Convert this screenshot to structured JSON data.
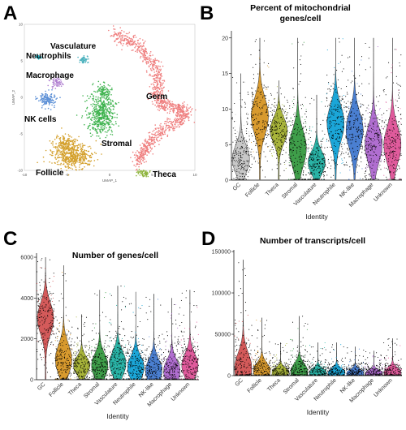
{
  "panels": [
    "A",
    "B",
    "C",
    "D"
  ],
  "chart_data": [
    {
      "type": "scatter",
      "panel": "A",
      "xlabel": "UMAP_1",
      "ylabel": "UMAP_2",
      "xlim": [
        -10,
        10
      ],
      "ylim": [
        -10,
        10
      ],
      "x_ticks": [
        -10,
        -5,
        0,
        5,
        10
      ],
      "x_tick_labels": [
        "-10",
        "-5",
        "0",
        "5",
        "10"
      ],
      "y_ticks": [
        -10,
        -5,
        0,
        5,
        10
      ],
      "y_tick_labels": [
        "-10",
        "-5",
        "0",
        "5",
        "10"
      ],
      "clusters": [
        {
          "name": "Vasculature",
          "color": "#4fb3bf"
        },
        {
          "name": "Neutrophils",
          "color": "#29b6c8"
        },
        {
          "name": "Macrophage",
          "color": "#b07fd0"
        },
        {
          "name": "NK cells",
          "color": "#5b8fd6"
        },
        {
          "name": "Germ",
          "color": "#ef7f7f"
        },
        {
          "name": "Stromal",
          "color": "#3fb34f"
        },
        {
          "name": "Follicle",
          "color": "#d4a02c"
        },
        {
          "name": "Theca",
          "color": "#8db33a"
        }
      ]
    },
    {
      "type": "violin",
      "panel": "B",
      "title": "Percent of mitochondrial genes/cell",
      "xlabel": "Identity",
      "ylabel": "",
      "ylim": [
        0,
        21
      ],
      "yticks": [
        0,
        5,
        10,
        15,
        20
      ],
      "ytick_labels": [
        "0",
        "5",
        "10",
        "15",
        "20"
      ],
      "categories": [
        "GC",
        "Follicle",
        "Theca",
        "Stromal",
        "Vasculature",
        "Neutrophile",
        "NK-like",
        "Macrophage",
        "Unknown"
      ],
      "colors": [
        "#c8c8c8",
        "#d89a2e",
        "#a8b43a",
        "#3f9e4a",
        "#2ab3a6",
        "#1ba6d8",
        "#4a7fd1",
        "#b06ed0",
        "#e05b9c"
      ],
      "medians": [
        3,
        9,
        7,
        4.5,
        2.5,
        8,
        7,
        5,
        5
      ],
      "maxima": [
        15,
        20,
        14,
        20,
        12,
        20,
        20,
        20,
        20
      ]
    },
    {
      "type": "violin",
      "panel": "C",
      "title": "Number of genes/cell",
      "xlabel": "Identity",
      "ylabel": "",
      "ylim": [
        0,
        6200
      ],
      "yticks": [
        0,
        2000,
        4000,
        6000
      ],
      "ytick_labels": [
        "0",
        "2000",
        "4000",
        "6000"
      ],
      "categories": [
        "GC",
        "Follicle",
        "Theca",
        "Stromal",
        "Vasculature",
        "Neutrophile",
        "NK-like",
        "Macrophage",
        "Unknown"
      ],
      "colors": [
        "#d45a5a",
        "#d89a2e",
        "#a8b43a",
        "#3f9e4a",
        "#2ab3a6",
        "#1ba6d8",
        "#4a7fd1",
        "#b06ed0",
        "#e05b9c"
      ],
      "medians": [
        3000,
        1000,
        700,
        700,
        800,
        600,
        450,
        450,
        700
      ],
      "maxima": [
        6000,
        5600,
        3200,
        4400,
        4600,
        4300,
        4200,
        4000,
        4400
      ]
    },
    {
      "type": "violin",
      "panel": "D",
      "title": "Number of transcripts/cell",
      "xlabel": "Identity",
      "ylabel": "",
      "ylim": [
        0,
        152000
      ],
      "yticks": [
        0,
        50000,
        100000,
        150000
      ],
      "ytick_labels": [
        "0",
        "50000",
        "100000",
        "150000"
      ],
      "categories": [
        "GC",
        "Follicle",
        "Theca",
        "Stromal",
        "Vasculature",
        "Neutrophile",
        "NK-like",
        "Macrophage",
        "Unknown"
      ],
      "colors": [
        "#d45a5a",
        "#d89a2e",
        "#a8b43a",
        "#3f9e4a",
        "#2ab3a6",
        "#1ba6d8",
        "#4a7fd1",
        "#b06ed0",
        "#e05b9c"
      ],
      "medians": [
        9000,
        6000,
        4500,
        5000,
        3500,
        3500,
        3000,
        3000,
        3500
      ],
      "maxima": [
        140000,
        70000,
        40000,
        72000,
        40000,
        40000,
        35000,
        30000,
        45000
      ]
    }
  ]
}
